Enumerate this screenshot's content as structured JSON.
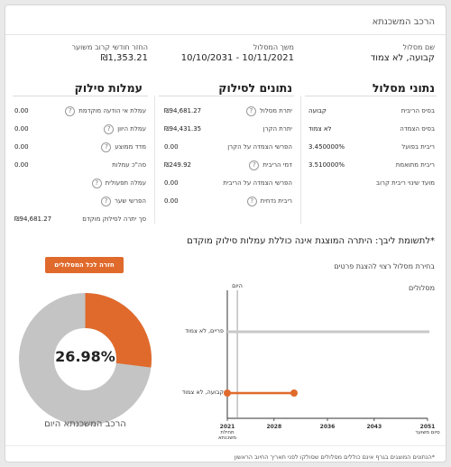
{
  "page": {
    "title": "הרכב המשכנתא"
  },
  "summary": {
    "track_name_label": "שם מסלול",
    "track_name_value": "קבועה, לא צמוד",
    "duration_label": "משך המסלול",
    "duration_value": "10/11/2021 - 10/10/2031",
    "monthly_label": "החזר חודשי קרוב משוער",
    "monthly_value": "₪1,353.21"
  },
  "track_data": {
    "title": "נתוני מסלול",
    "rows": [
      {
        "label": "בסיס הריבית",
        "value": "קבועה"
      },
      {
        "label": "בסיס הצמדה",
        "value": "לא צמוד"
      },
      {
        "label": "ריבית בפועל",
        "value": "3.450000%"
      },
      {
        "label": "ריבית מתואמת",
        "value": "3.510000%"
      },
      {
        "label": "מועד שינוי ריבית קרוב",
        "value": ""
      }
    ]
  },
  "repayment_data": {
    "title": "נתונים לסילוק",
    "rows": [
      {
        "label": "יתרת מסלול",
        "value": "₪94,681.27"
      },
      {
        "label": "יתרת הקרן",
        "value": "₪94,431.35"
      },
      {
        "label": "הפרשי הצמדה על הקרן",
        "value": "0.00"
      },
      {
        "label": "דמי הריבית",
        "value": "₪249.92"
      },
      {
        "label": "הפרשי הצמדה על הריבית",
        "value": "0.00"
      },
      {
        "label": "ריבית נדחית",
        "value": "0.00"
      }
    ]
  },
  "fees": {
    "title": "עמלות סילוק",
    "rows": [
      {
        "label": "עמלת אי הודעה מוקדמת",
        "value": "0.00"
      },
      {
        "label": "עמלת היוון",
        "value": "0.00"
      },
      {
        "label": "מדד ממוצע",
        "value": "0.00"
      },
      {
        "label": "סה\"כ עמלות",
        "value": "0.00"
      },
      {
        "label": "עמלה תפעולית",
        "value": ""
      },
      {
        "label": "הפרשי שער",
        "value": ""
      },
      {
        "label": "סך יתרה לסילוק מוקדם",
        "value": "₪94,681.27"
      }
    ]
  },
  "note": "*לתשומת ליבך: היתרה המוצגת אינה כוללת עמלות סילוק מוקדם",
  "back_button": "חזרה לכל המסלולים",
  "choose_text": "בחירת מסלול רצוי להצגת פרטים",
  "loans_label": "מסלולים",
  "donut": {
    "percent_label": "26.98%",
    "caption": "הרכב המשכנתא היום",
    "highlight_fraction": 0.2698,
    "highlight_color": "#e06a2c",
    "rest_color": "#c4c4c4"
  },
  "timeline": {
    "today_label": "היום",
    "today_year": 2022.5,
    "year_min": 2021,
    "year_max": 2051,
    "tracks": [
      {
        "label": "פריים, לא צמוד",
        "start": 2021,
        "end": 2051,
        "color": "#c8c8c8",
        "has_endpoints": false
      },
      {
        "label": "קבועה, לא צמוד",
        "start": 2021,
        "end": 2031,
        "color": "#e06a2c",
        "has_endpoints": true
      }
    ],
    "ticks": [
      {
        "year": 2021,
        "label": "2021",
        "sub": "תחילת משכנתא"
      },
      {
        "year": 2028,
        "label": "2028",
        "sub": ""
      },
      {
        "year": 2036,
        "label": "2036",
        "sub": ""
      },
      {
        "year": 2043,
        "label": "2043",
        "sub": ""
      },
      {
        "year": 2051,
        "label": "2051",
        "sub": "סיום משוער"
      }
    ]
  },
  "footnote": "*הנתונים המוצגים בגרף אינם כוללים מסלולים שסולקו לפני תאריך החיוב הראשון",
  "icons": {
    "help": "question-mark-circle-icon"
  }
}
